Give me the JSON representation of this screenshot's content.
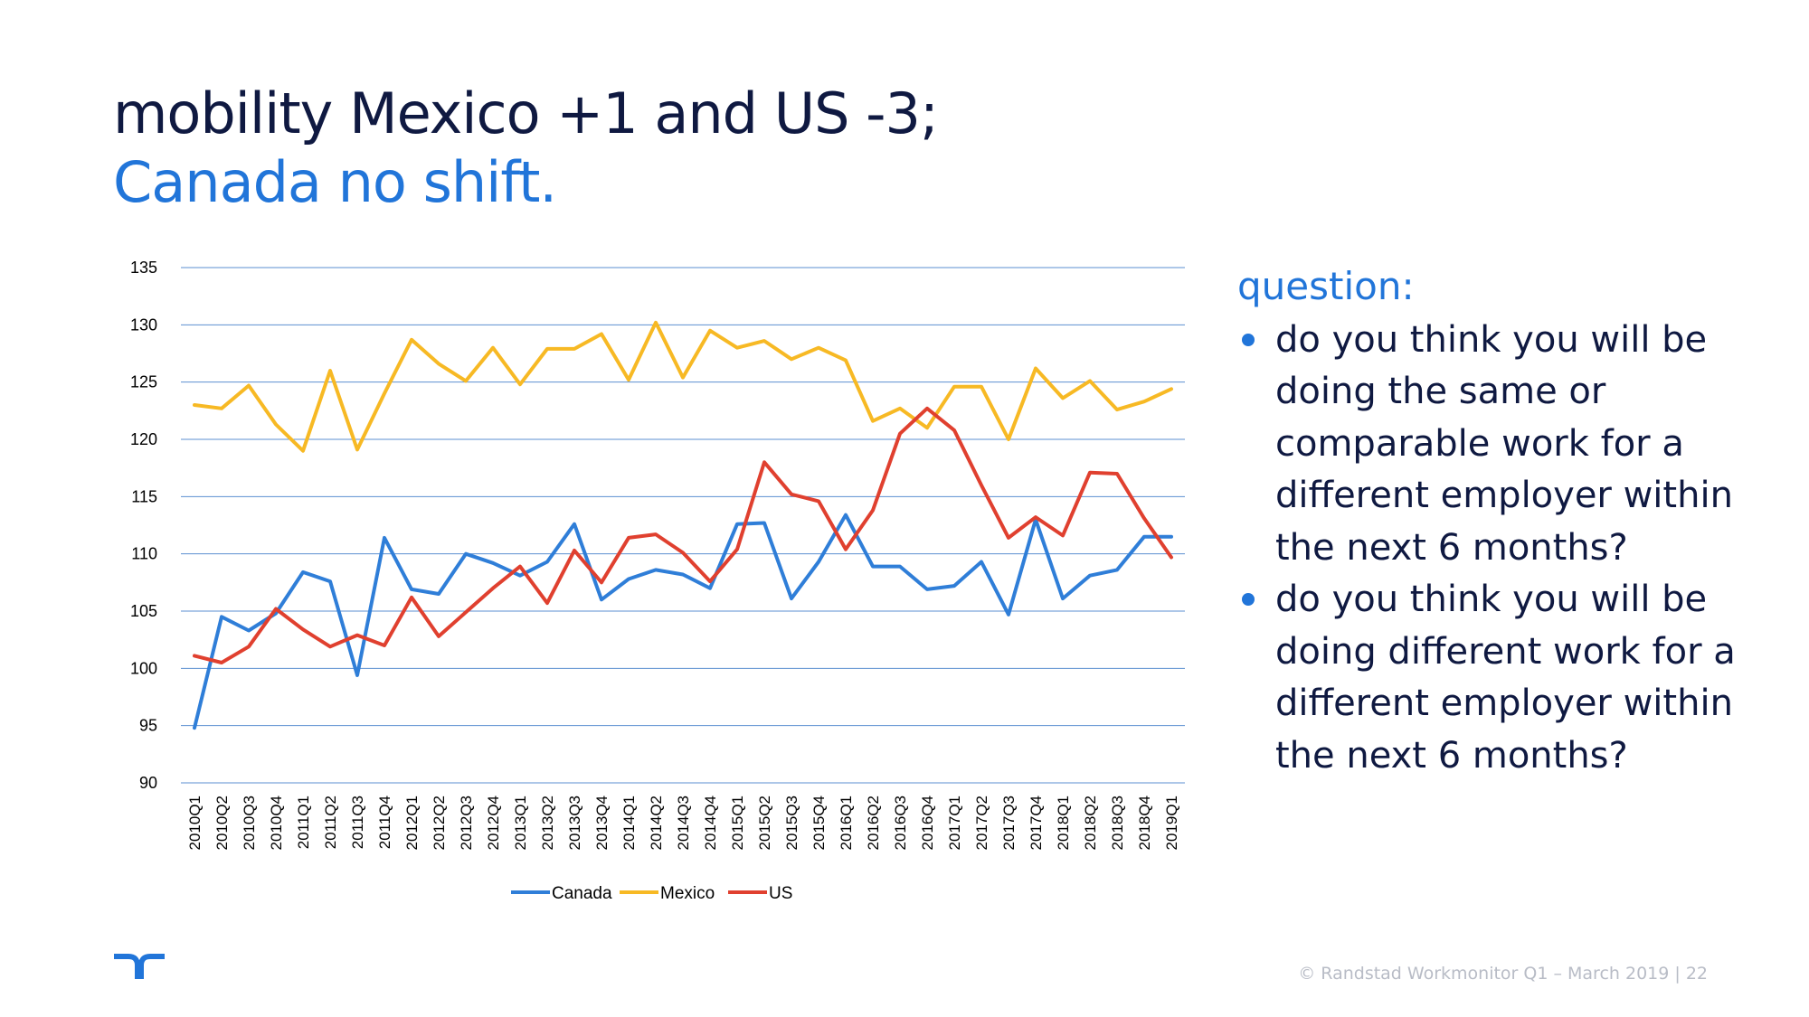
{
  "slide": {
    "title_line1": "mobility Mexico +1 and US -3;",
    "title_line2": "Canada no shift.",
    "question_heading": "question:",
    "questions": [
      "do you think you will be doing the same or comparable work for a different employer within the next 6 months?",
      "do you think you will be doing different work for a different employer within the next 6 months?"
    ],
    "footer": "© Randstad Workmonitor Q1 – March 2019  |  22",
    "logo_icon": "randstad-logo-icon"
  },
  "chart_data": {
    "type": "line",
    "title": "",
    "xlabel": "",
    "ylabel": "",
    "ylim": [
      90,
      135
    ],
    "yticks": [
      90,
      95,
      100,
      105,
      110,
      115,
      120,
      125,
      130,
      135
    ],
    "grid": true,
    "legend_position": "bottom",
    "categories": [
      "2010Q1",
      "2010Q2",
      "2010Q3",
      "2010Q4",
      "2011Q1",
      "2011Q2",
      "2011Q3",
      "2011Q4",
      "2012Q1",
      "2012Q2",
      "2012Q3",
      "2012Q4",
      "2013Q1",
      "2013Q2",
      "2013Q3",
      "2013Q4",
      "2014Q1",
      "2014Q2",
      "2014Q3",
      "2014Q4",
      "2015Q1",
      "2015Q2",
      "2015Q3",
      "2015Q4",
      "2016Q1",
      "2016Q2",
      "2016Q3",
      "2016Q4",
      "2017Q1",
      "2017Q2",
      "2017Q3",
      "2017Q4",
      "2018Q1",
      "2018Q2",
      "2018Q3",
      "2018Q4",
      "2019Q1"
    ],
    "series": [
      {
        "name": "Canada",
        "color": "#2f7ed8",
        "values": [
          94.8,
          104.5,
          103.3,
          104.8,
          108.4,
          107.6,
          99.4,
          111.4,
          106.9,
          106.5,
          110.0,
          109.2,
          108.1,
          109.3,
          112.6,
          106.0,
          107.8,
          108.6,
          108.2,
          107.0,
          112.6,
          112.7,
          106.1,
          109.3,
          113.4,
          108.9,
          108.9,
          106.9,
          107.2,
          109.3,
          104.7,
          113.0,
          106.1,
          108.1,
          108.6,
          111.5,
          111.5
        ]
      },
      {
        "name": "Mexico",
        "color": "#f7b924",
        "values": [
          123.0,
          122.7,
          124.7,
          121.3,
          119.0,
          126.0,
          119.1,
          124.0,
          128.7,
          126.6,
          125.1,
          128.0,
          124.8,
          127.9,
          127.9,
          129.2,
          125.2,
          130.2,
          125.4,
          129.5,
          128.0,
          128.6,
          127.0,
          128.0,
          126.9,
          121.6,
          122.7,
          121.0,
          124.6,
          124.6,
          120.0,
          126.2,
          123.6,
          125.1,
          122.6,
          123.3,
          124.4
        ]
      },
      {
        "name": "US",
        "color": "#e0402f",
        "values": [
          101.1,
          100.5,
          101.9,
          105.2,
          103.4,
          101.9,
          102.9,
          102.0,
          106.2,
          102.8,
          104.9,
          107.0,
          108.9,
          105.7,
          110.3,
          107.5,
          111.4,
          111.7,
          110.1,
          107.6,
          110.4,
          118.0,
          115.2,
          114.6,
          110.4,
          113.8,
          120.5,
          122.7,
          120.8,
          116.0,
          111.4,
          113.2,
          111.6,
          117.1,
          117.0,
          113.1,
          109.7
        ]
      }
    ]
  }
}
